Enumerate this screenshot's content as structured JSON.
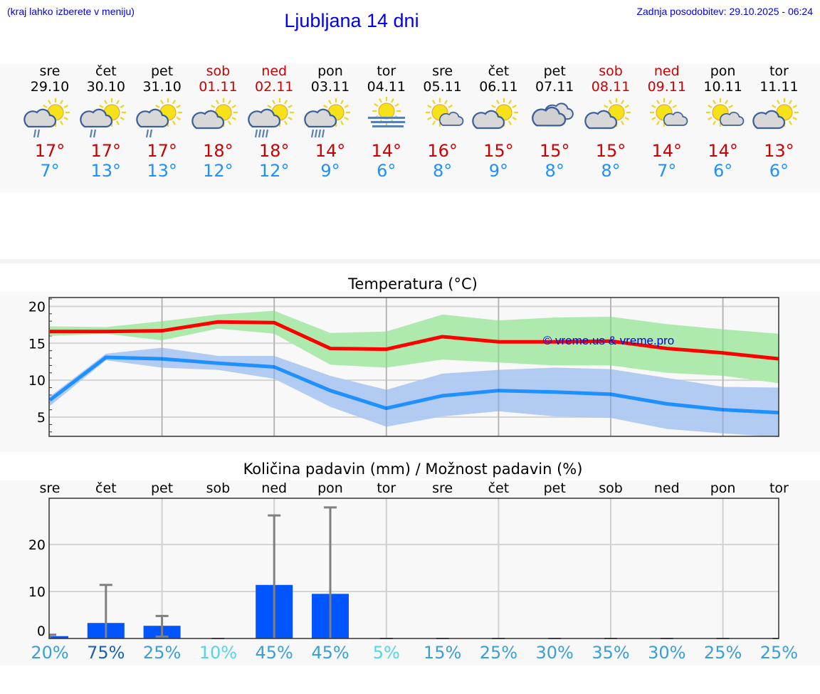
{
  "header": {
    "menu_note": "(kraj lahko izberete v meniju)",
    "title": "Ljubljana 14 dni",
    "last_update": "Zadnja posodobitev: 29.10.2025 - 06:24"
  },
  "colors": {
    "link": "#0000ee",
    "max_temp": "#cc0000",
    "min_temp": "#1e90ff",
    "weekend": "#cc0000",
    "max_band": "#aeeaae",
    "min_band": "#aec8f2",
    "max_line": "#ff0000",
    "min_line": "#1e90ff",
    "precip_bar": "#0055ff",
    "error_bar": "#808080"
  },
  "days": [
    {
      "name": "sre",
      "date": "29.10",
      "weekend": false,
      "icon": "sun-cloud-light-rain",
      "max": "17°",
      "min": "7°"
    },
    {
      "name": "čet",
      "date": "30.10",
      "weekend": false,
      "icon": "sun-cloud-light-rain",
      "max": "17°",
      "min": "13°"
    },
    {
      "name": "pet",
      "date": "31.10",
      "weekend": false,
      "icon": "sun-cloud-light-rain",
      "max": "17°",
      "min": "13°"
    },
    {
      "name": "sob",
      "date": "01.11",
      "weekend": true,
      "icon": "sun-cloud",
      "max": "18°",
      "min": "12°"
    },
    {
      "name": "ned",
      "date": "02.11",
      "weekend": true,
      "icon": "sun-cloud-heavy-rain",
      "max": "18°",
      "min": "12°"
    },
    {
      "name": "pon",
      "date": "03.11",
      "weekend": false,
      "icon": "sun-cloud-heavy-rain",
      "max": "14°",
      "min": "9°"
    },
    {
      "name": "tor",
      "date": "04.11",
      "weekend": false,
      "icon": "sun-fog",
      "max": "14°",
      "min": "6°"
    },
    {
      "name": "sre",
      "date": "05.11",
      "weekend": false,
      "icon": "sun-small-cloud",
      "max": "16°",
      "min": "8°"
    },
    {
      "name": "čet",
      "date": "06.11",
      "weekend": false,
      "icon": "sun-cloud",
      "max": "15°",
      "min": "9°"
    },
    {
      "name": "pet",
      "date": "07.11",
      "weekend": false,
      "icon": "cloudy",
      "max": "15°",
      "min": "8°"
    },
    {
      "name": "sob",
      "date": "08.11",
      "weekend": true,
      "icon": "sun-cloud",
      "max": "15°",
      "min": "8°"
    },
    {
      "name": "ned",
      "date": "09.11",
      "weekend": true,
      "icon": "sun-small-cloud",
      "max": "14°",
      "min": "7°"
    },
    {
      "name": "pon",
      "date": "10.11",
      "weekend": false,
      "icon": "sun-small-cloud",
      "max": "14°",
      "min": "6°"
    },
    {
      "name": "tor",
      "date": "11.11",
      "weekend": false,
      "icon": "sun-cloud",
      "max": "13°",
      "min": "6°"
    }
  ],
  "chart_data": [
    {
      "type": "line",
      "title": "Temperatura (°C)",
      "categories": [
        "29.10",
        "30.10",
        "31.10",
        "01.11",
        "02.11",
        "03.11",
        "04.11",
        "05.11",
        "06.11",
        "07.11",
        "08.11",
        "09.11",
        "10.11",
        "11.11"
      ],
      "ylim": [
        2.4,
        21.2
      ],
      "yticks": [
        5,
        10,
        15,
        20
      ],
      "grid": true,
      "watermark": "© vreme.us & vreme.pro",
      "series": [
        {
          "values": [
            16.6,
            16.6,
            16.7,
            17.9,
            17.8,
            14.3,
            14.2,
            15.9,
            15.2,
            15.2,
            15.3,
            14.3,
            13.7,
            12.9
          ],
          "band_high": [
            17.3,
            17.2,
            18.0,
            18.9,
            19.4,
            16.4,
            16.6,
            18.9,
            18.1,
            18.5,
            18.6,
            17.6,
            16.9,
            16.3
          ],
          "band_low": [
            16.0,
            16.3,
            15.4,
            17.0,
            16.3,
            12.1,
            11.7,
            12.8,
            12.4,
            12.0,
            12.0,
            11.0,
            10.6,
            9.6
          ]
        },
        {
          "values": [
            7.3,
            13.1,
            12.9,
            12.3,
            11.8,
            8.6,
            6.2,
            7.9,
            8.6,
            8.4,
            8.1,
            6.8,
            6.0,
            5.6
          ],
          "band_high": [
            7.8,
            13.6,
            14.4,
            13.3,
            13.3,
            10.6,
            8.7,
            10.9,
            11.4,
            11.7,
            11.5,
            10.3,
            9.1,
            9.0
          ],
          "band_low": [
            6.5,
            12.7,
            11.7,
            11.4,
            10.2,
            6.4,
            3.7,
            5.1,
            5.8,
            5.1,
            4.9,
            3.4,
            2.8,
            2.3
          ]
        }
      ]
    },
    {
      "type": "bar",
      "title": "Količina padavin (mm) / Možnost padavin (%)",
      "categories": [
        "sre",
        "čet",
        "pet",
        "sob",
        "ned",
        "pon",
        "tor",
        "sre",
        "čet",
        "pet",
        "sob",
        "ned",
        "pon",
        "tor"
      ],
      "ylim": [
        -1.8,
        30
      ],
      "yticks": [
        0,
        10,
        20
      ],
      "grid": true,
      "values": [
        0.5,
        3.3,
        2.7,
        0,
        11.4,
        9.5,
        0,
        0,
        0,
        0,
        0,
        0,
        0,
        0
      ],
      "error_low": [
        0,
        0,
        0.4,
        0,
        0,
        0,
        0,
        0,
        0,
        0,
        0,
        0,
        0,
        0
      ],
      "error_high": [
        0.8,
        11.4,
        4.8,
        0,
        26.2,
        27.9,
        0,
        0,
        0,
        0,
        0,
        0,
        0,
        0
      ],
      "probability": [
        "20%",
        "75%",
        "25%",
        "10%",
        "45%",
        "45%",
        "5%",
        "15%",
        "25%",
        "30%",
        "35%",
        "30%",
        "25%",
        "25%"
      ]
    }
  ]
}
